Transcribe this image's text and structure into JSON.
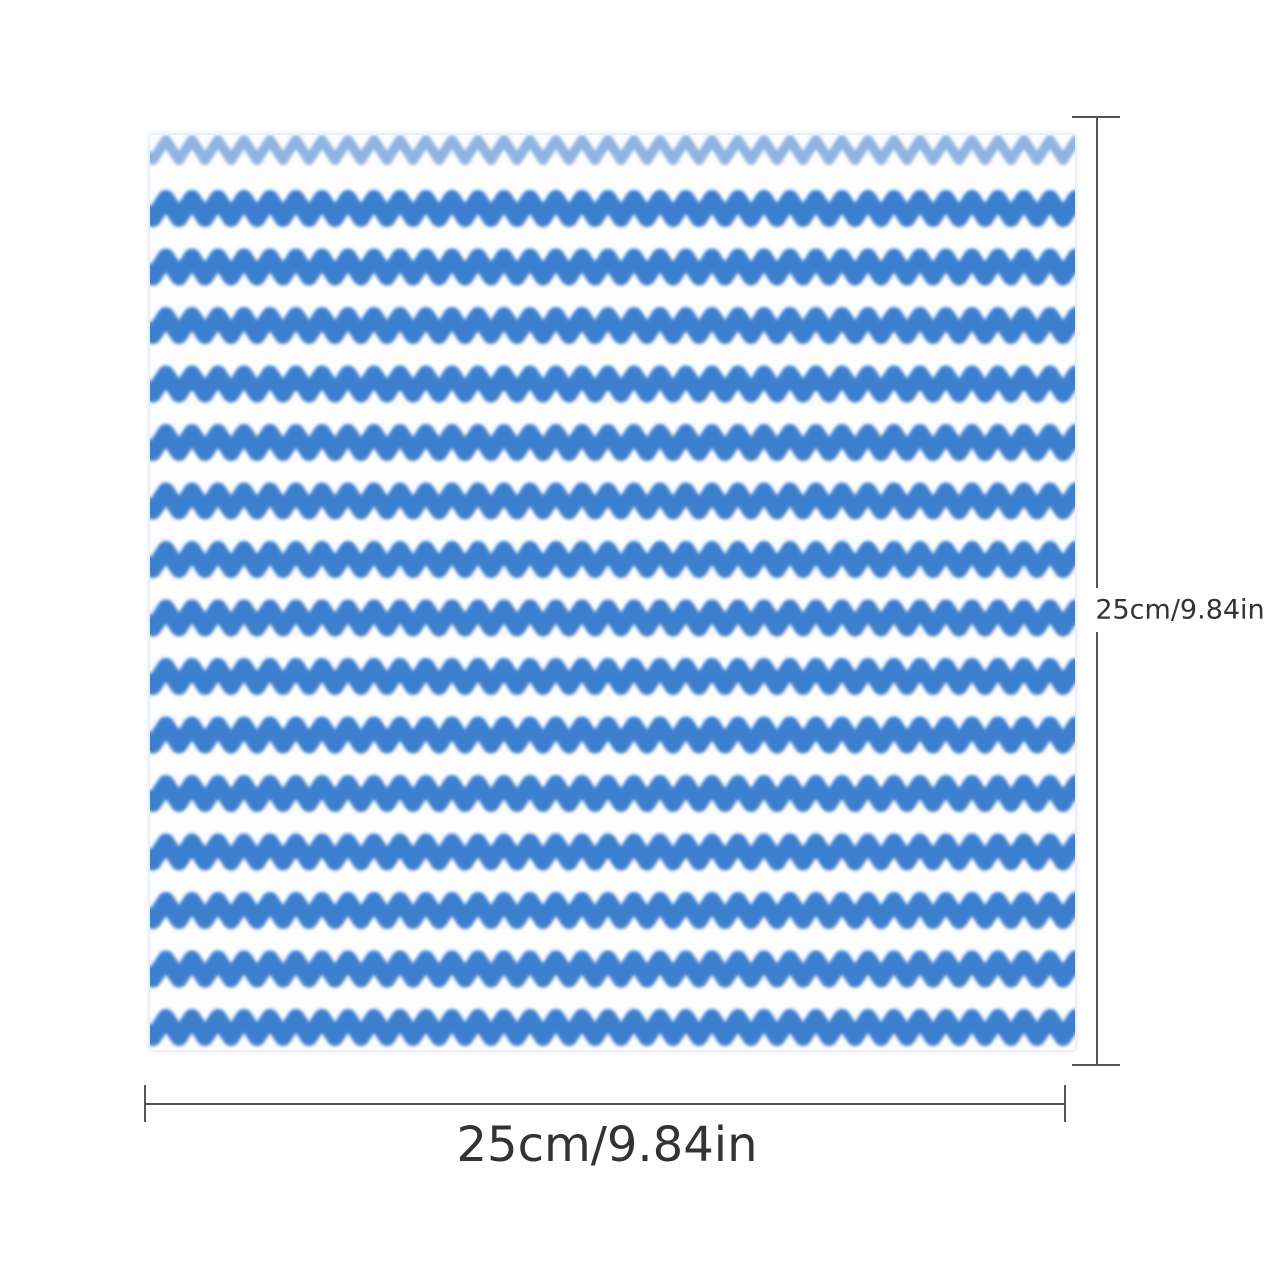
{
  "dimensions": {
    "height": "25cm/9.84in",
    "width": "25cm/9.84in"
  }
}
